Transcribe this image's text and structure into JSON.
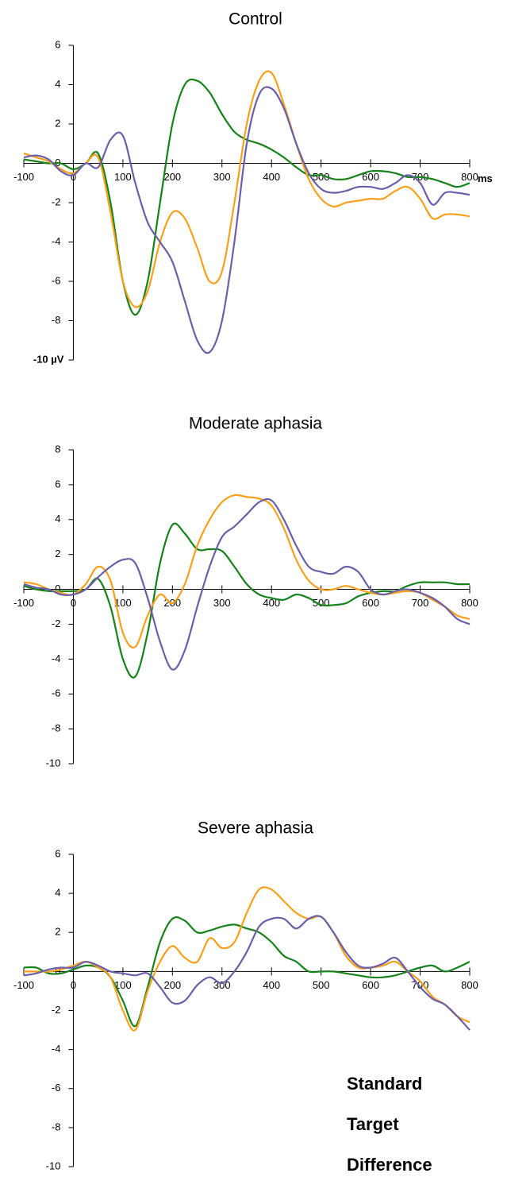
{
  "chart_data": [
    {
      "type": "line",
      "title": "Control",
      "x_label": "ms",
      "x": [
        -100,
        -75,
        -50,
        -25,
        0,
        25,
        50,
        75,
        100,
        125,
        150,
        175,
        200,
        225,
        250,
        275,
        300,
        325,
        350,
        375,
        400,
        425,
        450,
        475,
        500,
        525,
        550,
        575,
        600,
        625,
        650,
        675,
        700,
        725,
        750,
        775,
        800
      ],
      "xlim": [
        -100,
        800
      ],
      "xticks": [
        -100,
        0,
        100,
        200,
        300,
        400,
        500,
        600,
        700,
        800
      ],
      "ylim": [
        -10,
        6
      ],
      "yticks": [
        {
          "value": -10,
          "label": "-10 µV"
        },
        -8,
        -6,
        -4,
        -2,
        0,
        2,
        4,
        6
      ],
      "series": [
        {
          "name": "Standard",
          "color": "#16821a",
          "values": [
            0.2,
            0.1,
            0,
            0,
            -0.3,
            0,
            0.5,
            -2,
            -6,
            -7.7,
            -6,
            -2,
            2,
            4,
            4.2,
            3.6,
            2.5,
            1.6,
            1.2,
            1,
            0.7,
            0.3,
            -0.2,
            -0.6,
            -0.6,
            -0.8,
            -0.8,
            -0.6,
            -0.4,
            -0.4,
            -0.5,
            -0.7,
            -0.7,
            -0.8,
            -1.0,
            -1.2,
            -1.0
          ]
        },
        {
          "name": "Target",
          "color": "#f9a01b",
          "values": [
            0.5,
            0.3,
            0.1,
            -0.3,
            -0.5,
            0,
            0.3,
            -2.5,
            -6,
            -7.3,
            -6.5,
            -4,
            -2.5,
            -2.8,
            -4.3,
            -6,
            -5.5,
            -2,
            2,
            4.2,
            4.6,
            3,
            1,
            -0.8,
            -1.8,
            -2.2,
            -2,
            -1.9,
            -1.8,
            -1.8,
            -1.4,
            -1.2,
            -1.8,
            -2.8,
            -2.6,
            -2.6,
            -2.7
          ]
        },
        {
          "name": "Difference",
          "color": "#6a5fa8",
          "values": [
            0.3,
            0.4,
            0.2,
            -0.4,
            -0.6,
            0,
            -0.2,
            1.2,
            1.4,
            -1,
            -3,
            -4,
            -5,
            -7,
            -9,
            -9.6,
            -8,
            -4,
            1,
            3.5,
            3.8,
            2.8,
            1,
            -0.5,
            -1.3,
            -1.5,
            -1.4,
            -1.2,
            -1.2,
            -1.3,
            -1.0,
            -0.6,
            -1.0,
            -2.1,
            -1.5,
            -1.5,
            -1.6
          ]
        }
      ]
    },
    {
      "type": "line",
      "title": "Moderate aphasia",
      "x": [
        -100,
        -75,
        -50,
        -25,
        0,
        25,
        50,
        75,
        100,
        125,
        150,
        175,
        200,
        225,
        250,
        275,
        300,
        325,
        350,
        375,
        400,
        425,
        450,
        475,
        500,
        525,
        550,
        575,
        600,
        625,
        650,
        675,
        700,
        725,
        750,
        775,
        800
      ],
      "xlim": [
        -100,
        800
      ],
      "xticks": [
        -100,
        0,
        100,
        200,
        300,
        400,
        500,
        600,
        700,
        800
      ],
      "ylim": [
        -10,
        8
      ],
      "yticks": [
        -10,
        -8,
        -6,
        -4,
        -2,
        0,
        2,
        4,
        6,
        8
      ],
      "series": [
        {
          "name": "Standard",
          "color": "#16821a",
          "values": [
            0.2,
            0,
            -0.1,
            -0.1,
            -0.1,
            0,
            0.6,
            -1,
            -4,
            -5,
            -2.5,
            1.5,
            3.7,
            3.2,
            2.3,
            2.3,
            2.2,
            1.3,
            0.3,
            -0.3,
            -0.5,
            -0.6,
            -0.3,
            -0.5,
            -0.9,
            -0.9,
            -0.8,
            -0.4,
            -0.2,
            -0.1,
            -0.1,
            0.2,
            0.4,
            0.4,
            0.4,
            0.3,
            0.3
          ]
        },
        {
          "name": "Target",
          "color": "#f9a01b",
          "values": [
            0.4,
            0.3,
            0,
            -0.2,
            -0.3,
            0.3,
            1.3,
            0.5,
            -2.5,
            -3.3,
            -1.5,
            -0.3,
            -0.8,
            0.3,
            2.5,
            4,
            5,
            5.4,
            5.3,
            5.2,
            4.8,
            3.5,
            1.7,
            0.5,
            0,
            0,
            0.2,
            0,
            -0.2,
            -0.3,
            -0.2,
            -0.1,
            -0.2,
            -0.6,
            -1,
            -1.5,
            -1.7
          ]
        },
        {
          "name": "Difference",
          "color": "#6a5fa8",
          "values": [
            0.3,
            0.1,
            0,
            -0.3,
            -0.3,
            0,
            0.7,
            1.3,
            1.7,
            1.5,
            -0.5,
            -3,
            -4.6,
            -3.5,
            -1,
            1.3,
            3,
            3.6,
            4.3,
            5,
            5.1,
            4,
            2.5,
            1.3,
            1,
            0.9,
            1.3,
            1,
            0,
            -0.3,
            -0.1,
            0,
            -0.2,
            -0.5,
            -1,
            -1.7,
            -2
          ]
        }
      ]
    },
    {
      "type": "line",
      "title": "Severe aphasia",
      "legend": "lower right",
      "x": [
        -100,
        -75,
        -50,
        -25,
        0,
        25,
        50,
        75,
        100,
        125,
        150,
        175,
        200,
        225,
        250,
        275,
        300,
        325,
        350,
        375,
        400,
        425,
        450,
        475,
        500,
        525,
        550,
        575,
        600,
        625,
        650,
        675,
        700,
        725,
        750,
        775,
        800
      ],
      "xlim": [
        -100,
        800
      ],
      "xticks": [
        -100,
        0,
        100,
        200,
        300,
        400,
        500,
        600,
        700,
        800
      ],
      "ylim": [
        -10,
        6
      ],
      "yticks": [
        -10,
        -8,
        -6,
        -4,
        -2,
        0,
        2,
        4,
        6
      ],
      "series": [
        {
          "name": "Standard",
          "color": "#16821a",
          "values": [
            0.2,
            0.2,
            -0.1,
            -0.1,
            0.1,
            0.3,
            0.2,
            -0.3,
            -1.5,
            -2.8,
            -0.8,
            1.5,
            2.7,
            2.6,
            2,
            2.1,
            2.3,
            2.4,
            2.2,
            2,
            1.5,
            0.8,
            0.5,
            0,
            0,
            0,
            -0.1,
            -0.2,
            -0.3,
            -0.3,
            -0.2,
            0,
            0.2,
            0.3,
            0,
            0.2,
            0.5
          ]
        },
        {
          "name": "Target",
          "color": "#f9a01b",
          "values": [
            0,
            0,
            0,
            0.1,
            0.3,
            0.5,
            0.2,
            -0.3,
            -2,
            -3,
            -1,
            0.5,
            1.3,
            0.7,
            0.5,
            1.7,
            1.2,
            1.5,
            3,
            4.2,
            4.2,
            3.6,
            3,
            2.7,
            2.8,
            2,
            0.8,
            0.2,
            0.2,
            0.3,
            0.5,
            0,
            -0.5,
            -1.3,
            -1.7,
            -2.3,
            -2.6
          ]
        },
        {
          "name": "Difference",
          "color": "#6a5fa8",
          "values": [
            -0.2,
            -0.1,
            0.1,
            0.2,
            0.2,
            0.5,
            0.3,
            0,
            -0.1,
            -0.2,
            -0.1,
            -0.8,
            -1.6,
            -1.5,
            -0.7,
            -0.3,
            -0.6,
            0,
            1,
            2.3,
            2.7,
            2.7,
            2.2,
            2.7,
            2.8,
            2,
            1,
            0.3,
            0.2,
            0.4,
            0.7,
            0,
            -0.8,
            -1.4,
            -1.7,
            -2.3,
            -3
          ]
        }
      ]
    }
  ]
}
